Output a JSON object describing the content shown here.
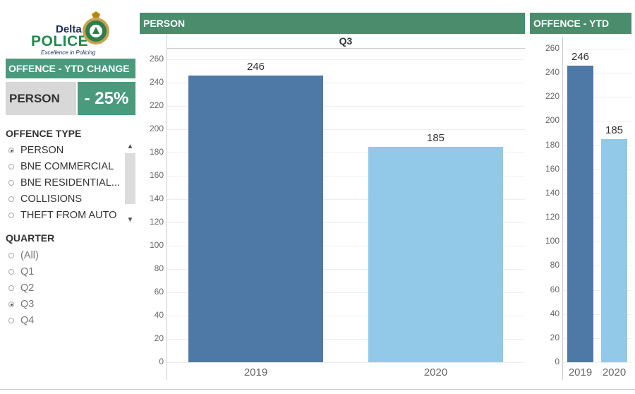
{
  "logo": {
    "brand_top": "Delta",
    "brand_main": "POLICE",
    "tagline": "Excellence in Policing"
  },
  "ytd_change": {
    "header": "OFFENCE - YTD CHANGE",
    "offence": "PERSON",
    "value": "- 25%"
  },
  "offence_filter": {
    "title": "OFFENCE TYPE",
    "options": [
      "PERSON",
      "BNE COMMERCIAL",
      "BNE RESIDENTIAL...",
      "COLLISIONS",
      "THEFT FROM AUTO"
    ],
    "selected": "PERSON"
  },
  "quarter_filter": {
    "title": "QUARTER",
    "options": [
      "(All)",
      "Q1",
      "Q2",
      "Q3",
      "Q4"
    ],
    "selected": "Q3"
  },
  "colors": {
    "header_green": "#4a8c6b",
    "kpi_green": "#4a9a7e",
    "bar_2019": "#4e79a7",
    "bar_2020": "#92c9e8"
  },
  "chart_data": [
    {
      "type": "bar",
      "panel_title": "PERSON",
      "subtitle": "Q3",
      "categories": [
        "2019",
        "2020"
      ],
      "values": [
        246,
        185
      ],
      "ylim": [
        0,
        260
      ],
      "yticks": [
        0,
        20,
        40,
        60,
        80,
        100,
        120,
        140,
        160,
        180,
        200,
        220,
        240,
        260
      ],
      "grid": true
    },
    {
      "type": "bar",
      "panel_title": "OFFENCE - YTD",
      "categories": [
        "2019",
        "2020"
      ],
      "values": [
        246,
        185
      ],
      "ylim": [
        0,
        260
      ],
      "yticks": [
        0,
        20,
        40,
        60,
        80,
        100,
        120,
        140,
        160,
        180,
        200,
        220,
        240,
        260
      ],
      "grid": true
    }
  ]
}
